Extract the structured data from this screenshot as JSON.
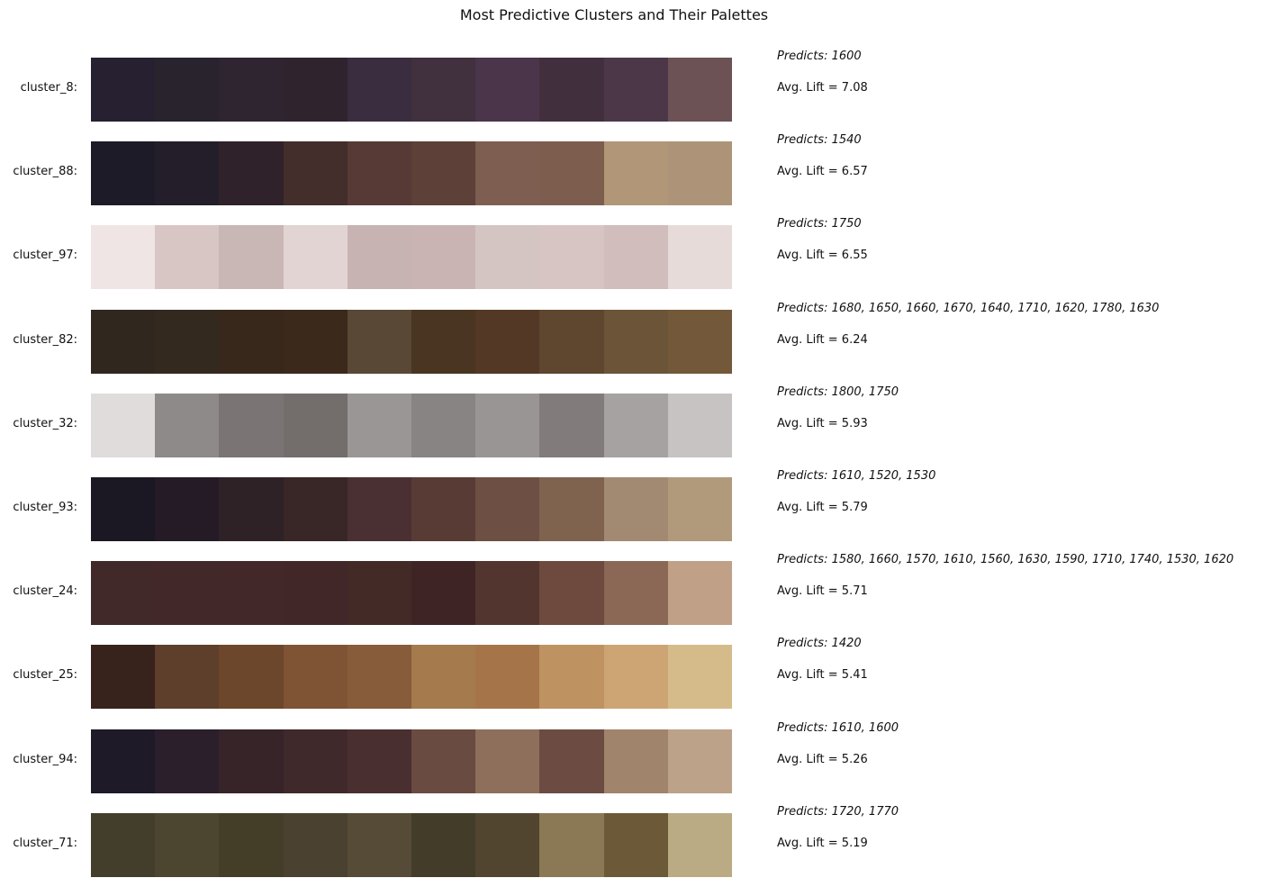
{
  "chart_data": {
    "type": "table",
    "title": "Most Predictive Clusters and Their Palettes",
    "rows": [
      {
        "label": "cluster_8:",
        "predicts": "Predicts: 1600",
        "lift": "Avg. Lift = 7.08",
        "lift_value": 7.08,
        "colors": [
          "#272030",
          "#29232d",
          "#2f2530",
          "#2f232e",
          "#392d3f",
          "#41303e",
          "#4b354a",
          "#422f3d",
          "#4c3749",
          "#6c5255"
        ]
      },
      {
        "label": "cluster_88:",
        "predicts": "Predicts: 1540",
        "lift": "Avg. Lift = 6.57",
        "lift_value": 6.57,
        "colors": [
          "#1e1b28",
          "#241e2a",
          "#30222a",
          "#432e2c",
          "#573a36",
          "#5d4037",
          "#7e5e51",
          "#7d5e4e",
          "#b19678",
          "#ad9479"
        ]
      },
      {
        "label": "cluster_97:",
        "predicts": "Predicts: 1750",
        "lift": "Avg. Lift = 6.55",
        "lift_value": 6.55,
        "colors": [
          "#efe5e4",
          "#d8c6c5",
          "#c9b7b6",
          "#e1d4d2",
          "#c6b3b2",
          "#c9b4b3",
          "#d4c5c3",
          "#d7c5c4",
          "#d0bdbc",
          "#e6dbd9"
        ]
      },
      {
        "label": "cluster_82:",
        "predicts": "Predicts: 1680, 1650, 1660, 1670, 1640, 1710, 1620, 1780, 1630",
        "lift": "Avg. Lift = 6.24",
        "lift_value": 6.24,
        "colors": [
          "#30271f",
          "#33291e",
          "#38271b",
          "#3b291c",
          "#584835",
          "#4a3522",
          "#533826",
          "#5e462f",
          "#6b5438",
          "#73593a"
        ]
      },
      {
        "label": "cluster_32:",
        "predicts": "Predicts: 1800, 1750",
        "lift": "Avg. Lift = 5.93",
        "lift_value": 5.93,
        "colors": [
          "#dfdcdb",
          "#8e8a89",
          "#7a7574",
          "#736e6c",
          "#9a9696",
          "#878483",
          "#9a9595",
          "#817c7b",
          "#a6a2a1",
          "#c8c3c3"
        ]
      },
      {
        "label": "cluster_93:",
        "predicts": "Predicts: 1610, 1520, 1530",
        "lift": "Avg. Lift = 5.79",
        "lift_value": 5.79,
        "colors": [
          "#1b1823",
          "#251b27",
          "#2f2226",
          "#392627",
          "#4a3032",
          "#583b35",
          "#6e4f43",
          "#7f634f",
          "#a28a72",
          "#b19a7b"
        ]
      },
      {
        "label": "cluster_24:",
        "predicts": "Predicts: 1580, 1660, 1570, 1610, 1560, 1630, 1590, 1710, 1740, 1530, 1620",
        "lift": "Avg. Lift = 5.71",
        "lift_value": 5.71,
        "colors": [
          "#412829",
          "#422829",
          "#432829",
          "#422728",
          "#432a26",
          "#3f2426",
          "#53352f",
          "#6e4a3e",
          "#8b6756",
          "#c0a087"
        ]
      },
      {
        "label": "cluster_25:",
        "predicts": "Predicts: 1420",
        "lift": "Avg. Lift = 5.41",
        "lift_value": 5.41,
        "colors": [
          "#37221c",
          "#5d3f2b",
          "#6c472c",
          "#7f5434",
          "#875c3a",
          "#a57a4c",
          "#a57549",
          "#bf9262",
          "#cda474",
          "#d6bb8a"
        ]
      },
      {
        "label": "cluster_94:",
        "predicts": "Predicts: 1610, 1600",
        "lift": "Avg. Lift = 5.26",
        "lift_value": 5.26,
        "colors": [
          "#1f1a27",
          "#2c1f2c",
          "#372428",
          "#40292b",
          "#4a2f31",
          "#6a4b41",
          "#8e6f5c",
          "#6c4c42",
          "#a1846c",
          "#bca289"
        ]
      },
      {
        "label": "cluster_71:",
        "predicts": "Predicts: 1720, 1770",
        "lift": "Avg. Lift = 5.19",
        "lift_value": 5.19,
        "colors": [
          "#433d2c",
          "#4c4631",
          "#443d28",
          "#4b4131",
          "#564b36",
          "#433c29",
          "#52452f",
          "#8b7855",
          "#6b5937",
          "#bbab84"
        ]
      }
    ]
  }
}
